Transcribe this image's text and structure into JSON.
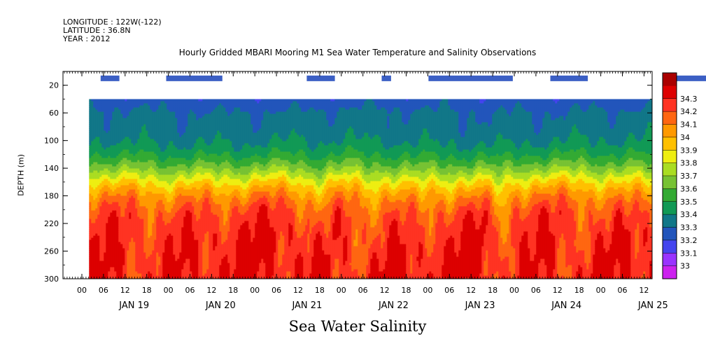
{
  "header": {
    "longitude": "LONGITUDE : 122W(-122)",
    "latitude": "LATITUDE : 36.8N",
    "year": "YEAR : 2012"
  },
  "footer_label": "Sea Water Salinity",
  "chart_data": {
    "type": "heatmap",
    "title": "Hourly Gridded MBARI Mooring M1 Sea Water Temperature and Salinity Observations",
    "xlabel": "",
    "ylabel": "DEPTH (m)",
    "x_hour_ticks": [
      "00",
      "06",
      "12",
      "18",
      "00",
      "06",
      "12",
      "18",
      "00",
      "06",
      "12",
      "18",
      "00",
      "06",
      "12",
      "18",
      "00",
      "06",
      "12",
      "18",
      "00",
      "06",
      "12",
      "18",
      "00",
      "06",
      "12"
    ],
    "x_day_labels": [
      {
        "label": "JAN 19",
        "hours_from_start": 60
      },
      {
        "label": "JAN 20",
        "hours_from_start": 84
      },
      {
        "label": "JAN 21",
        "hours_from_start": 108
      },
      {
        "label": "JAN 22",
        "hours_from_start": 132
      },
      {
        "label": "JAN 23",
        "hours_from_start": 156
      },
      {
        "label": "JAN 24",
        "hours_from_start": 180
      },
      {
        "label": "JAN 25",
        "hours_from_start": 204
      }
    ],
    "y_ticks": [
      20,
      60,
      100,
      140,
      180,
      220,
      260,
      300
    ],
    "ylim": [
      300,
      0
    ],
    "colorbar": {
      "levels": [
        33,
        33.1,
        33.2,
        33.3,
        33.4,
        33.5,
        33.6,
        33.7,
        33.8,
        33.9,
        34,
        34.1,
        34.2,
        34.3
      ],
      "labels": [
        "33",
        "33.1",
        "33.2",
        "33.3",
        "33.4",
        "33.5",
        "33.6",
        "33.7",
        "33.8",
        "33.9",
        "34",
        "34.1",
        "34.2",
        "34.3"
      ],
      "colors": [
        "#cc22ee",
        "#9933ff",
        "#4444ee",
        "#2255bb",
        "#117788",
        "#119955",
        "#33aa33",
        "#77c233",
        "#aadd22",
        "#eeee11",
        "#ffc000",
        "#ff9900",
        "#ff6611",
        "#ff3322",
        "#dd0000",
        "#aa0000"
      ]
    },
    "near_surface_samples": {
      "depth_m": 10,
      "segments_hours": [
        [
          2,
          4
        ],
        [
          9,
          15
        ],
        [
          24,
          27
        ],
        [
          32,
          33
        ],
        [
          37,
          46
        ],
        [
          50,
          54
        ],
        [
          63,
          73
        ],
        [
          77,
          79
        ],
        [
          82,
          85
        ],
        [
          86,
          89
        ],
        [
          94,
          104
        ]
      ]
    },
    "field_description_ranges": {
      "depth_range_m": [
        40,
        300
      ],
      "surface_values": [
        33.3,
        33.5
      ],
      "deep_values": [
        34.2,
        34.3
      ]
    }
  }
}
